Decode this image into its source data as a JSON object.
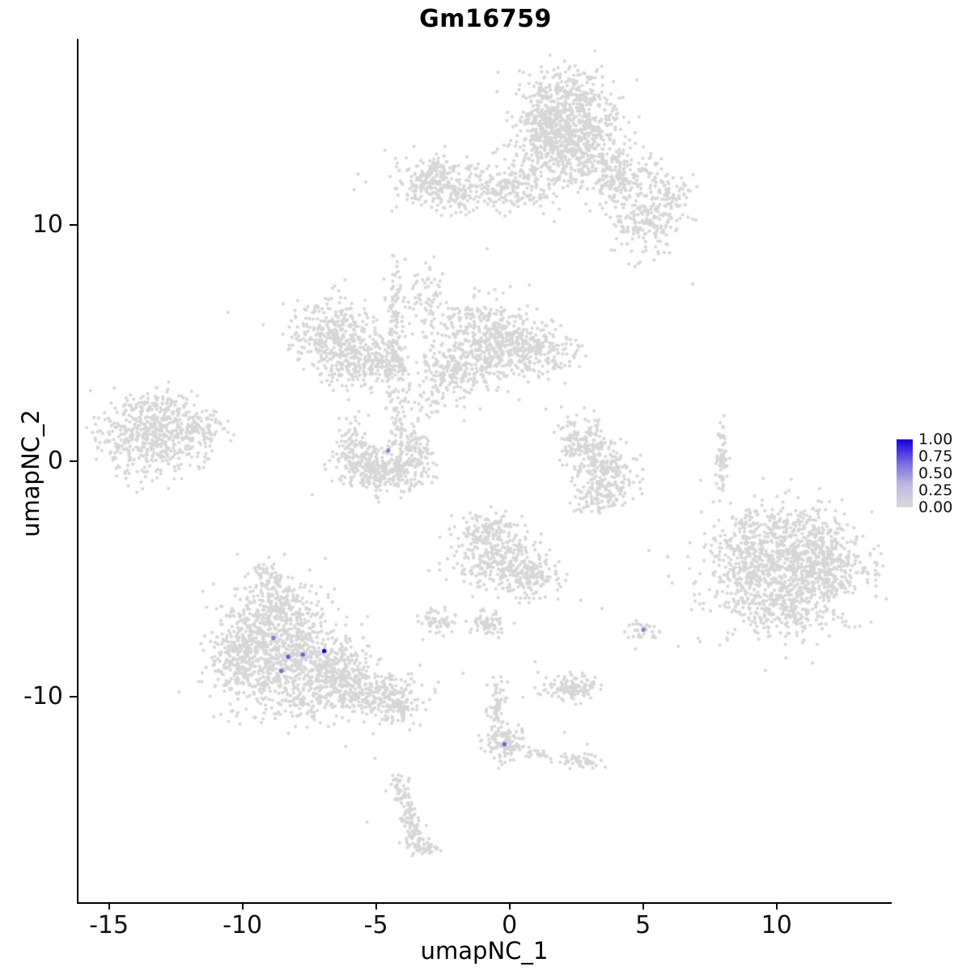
{
  "title": "Gm16759",
  "axes": {
    "xlabel": "umapNC_1",
    "ylabel": "umapNC_2",
    "x_tick_values": [
      -15,
      -10,
      -5,
      0,
      5,
      10
    ],
    "x_tick_labels": [
      "-15",
      "-10",
      "-5",
      "0",
      "5",
      "10"
    ],
    "y_tick_values": [
      -10,
      0,
      10
    ],
    "y_tick_labels": [
      "-10",
      "0",
      "10"
    ]
  },
  "legend": {
    "labels": [
      "1.00",
      "0.75",
      "0.50",
      "0.25",
      "0.00"
    ],
    "color_high": "#1500e0",
    "color_low": "#d9d9d9"
  },
  "style": {
    "point_color": "#d6d6d6",
    "point_radius": 2.1,
    "highlight_radius": 2.7
  },
  "chart_data": {
    "type": "scatter",
    "title": "Gm16759",
    "xlabel": "umapNC_1",
    "ylabel": "umapNC_2",
    "xlim": [
      -16.2,
      14.25
    ],
    "ylim": [
      -18.7,
      17.9
    ],
    "x_ticks": [
      -15,
      -10,
      -5,
      0,
      5,
      10
    ],
    "y_ticks": [
      -10,
      0,
      10
    ],
    "legend_scale": {
      "min": 0.0,
      "max": 1.0,
      "tick_labels": [
        "1.00",
        "0.75",
        "0.50",
        "0.25",
        "0.00"
      ]
    },
    "grid": false,
    "seed": 42,
    "cluster_format": [
      "cx",
      "cy",
      "sx",
      "sy",
      "n"
    ],
    "clusters": [
      [
        2.0,
        14.5,
        1.0,
        1.0,
        550
      ],
      [
        1.4,
        14.0,
        0.6,
        0.9,
        200
      ],
      [
        2.8,
        13.0,
        0.7,
        0.6,
        200
      ],
      [
        3.9,
        11.8,
        0.6,
        0.5,
        120
      ],
      [
        5.0,
        10.1,
        0.65,
        0.75,
        180
      ],
      [
        6.0,
        11.2,
        0.45,
        0.5,
        70
      ],
      [
        4.7,
        12.5,
        0.6,
        0.5,
        50
      ],
      [
        2.2,
        15.6,
        0.7,
        0.4,
        60
      ],
      [
        -1.6,
        11.7,
        1.5,
        0.55,
        280
      ],
      [
        -2.9,
        11.9,
        0.55,
        0.5,
        140
      ],
      [
        0.2,
        11.4,
        0.6,
        0.4,
        80
      ],
      [
        1.0,
        12.4,
        0.4,
        0.4,
        40
      ],
      [
        -6.7,
        5.4,
        0.85,
        0.75,
        320
      ],
      [
        -6.2,
        4.2,
        0.6,
        0.5,
        130
      ],
      [
        -4.35,
        5.8,
        0.18,
        1.2,
        110
      ],
      [
        -4.8,
        4.1,
        0.5,
        0.45,
        140
      ],
      [
        -1.0,
        5.2,
        1.05,
        0.85,
        480
      ],
      [
        0.9,
        4.6,
        0.85,
        0.5,
        220
      ],
      [
        -2.2,
        3.9,
        0.7,
        0.5,
        150
      ],
      [
        -4.3,
        2.3,
        0.25,
        0.9,
        60
      ],
      [
        -2.5,
        2.7,
        0.7,
        0.4,
        40
      ],
      [
        -3.1,
        6.9,
        0.5,
        0.6,
        60
      ],
      [
        -5.9,
        0.5,
        0.35,
        0.6,
        110
      ],
      [
        -4.8,
        -0.55,
        0.85,
        0.4,
        230
      ],
      [
        -3.65,
        0.5,
        0.35,
        0.6,
        110
      ],
      [
        -4.75,
        0.1,
        0.55,
        0.4,
        60
      ],
      [
        -13.4,
        1.0,
        1.0,
        0.85,
        500
      ],
      [
        -11.7,
        1.5,
        0.45,
        0.5,
        90
      ],
      [
        -13.0,
        2.4,
        0.6,
        0.3,
        50
      ],
      [
        2.7,
        0.8,
        0.5,
        0.6,
        160
      ],
      [
        3.6,
        -0.5,
        0.55,
        0.7,
        200
      ],
      [
        3.2,
        -1.7,
        0.4,
        0.35,
        70
      ],
      [
        10.3,
        -4.6,
        1.5,
        1.25,
        850
      ],
      [
        11.4,
        -4.2,
        0.8,
        0.9,
        280
      ],
      [
        8.8,
        -4.2,
        0.5,
        1.0,
        140
      ],
      [
        10.0,
        -6.4,
        1.0,
        0.45,
        130
      ],
      [
        9.8,
        -2.7,
        0.8,
        0.4,
        70
      ],
      [
        7.9,
        0.1,
        0.1,
        0.8,
        65
      ],
      [
        -8.8,
        -6.1,
        0.9,
        0.7,
        280
      ],
      [
        -8.7,
        -8.3,
        1.15,
        1.05,
        750
      ],
      [
        -10.3,
        -8.6,
        0.5,
        0.8,
        140
      ],
      [
        -9.1,
        -4.9,
        0.3,
        0.45,
        50
      ],
      [
        -6.6,
        -8.9,
        0.7,
        0.5,
        230
      ],
      [
        -5.3,
        -9.8,
        0.8,
        0.5,
        230
      ],
      [
        -4.3,
        -10.4,
        0.5,
        0.35,
        100
      ],
      [
        -7.6,
        -10.3,
        0.8,
        0.4,
        80
      ],
      [
        -0.9,
        -2.9,
        0.45,
        0.35,
        90
      ],
      [
        -0.6,
        -4.1,
        0.8,
        0.7,
        280
      ],
      [
        0.6,
        -4.8,
        0.5,
        0.5,
        140
      ],
      [
        -2.7,
        -6.8,
        0.3,
        0.3,
        55
      ],
      [
        -0.9,
        -6.9,
        0.35,
        0.3,
        65
      ],
      [
        4.95,
        -7.15,
        0.28,
        0.28,
        35
      ],
      [
        2.2,
        -9.6,
        0.6,
        0.28,
        120
      ],
      [
        -0.55,
        -10.6,
        0.18,
        0.8,
        75
      ],
      [
        -0.25,
        -11.95,
        0.35,
        0.35,
        110
      ],
      [
        2.5,
        -12.7,
        0.45,
        0.2,
        55
      ],
      [
        0.9,
        -12.4,
        0.25,
        0.15,
        20
      ],
      [
        -4.1,
        -13.8,
        0.2,
        0.35,
        40
      ],
      [
        -3.8,
        -14.9,
        0.18,
        0.45,
        50
      ],
      [
        -3.55,
        -15.9,
        0.2,
        0.4,
        45
      ],
      [
        -3.2,
        -16.4,
        0.3,
        0.2,
        30
      ]
    ],
    "singles": [
      [
        -10.6,
        6.3
      ],
      [
        6.8,
        7.5
      ],
      [
        -3.5,
        7.9
      ],
      [
        -3.2,
        8.4
      ],
      [
        1.3,
        2.2
      ],
      [
        2.6,
        -5.9
      ],
      [
        3.4,
        -6.25
      ],
      [
        -6.2,
        -12.1
      ],
      [
        -5.1,
        -12.6
      ],
      [
        0.9,
        -8.5
      ],
      [
        -1.8,
        -9.0
      ],
      [
        -3.8,
        -11.4
      ],
      [
        2.0,
        -11.5
      ],
      [
        -5.4,
        -15.3
      ],
      [
        0.3,
        2.6
      ],
      [
        5.8,
        9.2
      ],
      [
        -0.9,
        9.0
      ]
    ],
    "highlighted_cells": [
      {
        "x": -7.0,
        "y": -8.05,
        "value": 1.0
      },
      {
        "x": -8.35,
        "y": -8.3,
        "value": 0.6
      },
      {
        "x": -7.8,
        "y": -8.2,
        "value": 0.55
      },
      {
        "x": -8.6,
        "y": -8.9,
        "value": 0.5
      },
      {
        "x": -8.9,
        "y": -7.5,
        "value": 0.45
      },
      {
        "x": -4.6,
        "y": 0.45,
        "value": 0.4
      },
      {
        "x": 4.95,
        "y": -7.15,
        "value": 0.4
      },
      {
        "x": -0.25,
        "y": -12.0,
        "value": 0.55
      }
    ]
  }
}
